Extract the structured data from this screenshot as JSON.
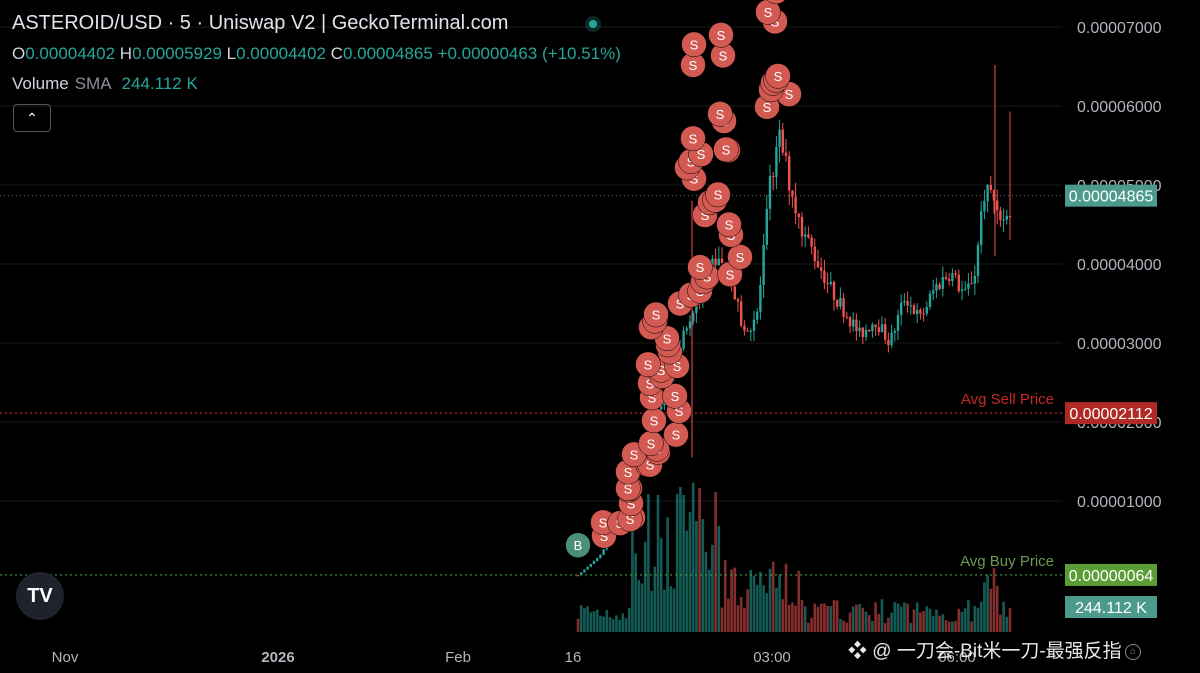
{
  "header": {
    "title": "ASTEROID/USD · 5 · Uniswap V2 | GeckoTerminal.com",
    "ohlc": {
      "o_label": "O",
      "o": "0.00004402",
      "h_label": "H",
      "h": "0.00005929",
      "l_label": "L",
      "l": "0.00004402",
      "c_label": "C",
      "c": "0.00004865",
      "change": "+0.00000463 (+10.51%)"
    },
    "volume": {
      "name": "Volume",
      "sma": "SMA",
      "value": "244.112 K"
    }
  },
  "controls": {
    "collapse_glyph": "⌃",
    "logo_text": "TV"
  },
  "watermark": "❖ @ 一刀会-Bit米一刀-最强反指",
  "chart_data": {
    "type": "candlestick",
    "y_axis": {
      "ticks": [
        1e-05,
        2e-05,
        3e-05,
        4e-05,
        5e-05,
        6e-05,
        7e-05
      ],
      "tick_labels": [
        "0.00001000",
        "0.00002000",
        "0.00003000",
        "0.00004000",
        "0.00005000",
        "0.00006000",
        "0.00007000"
      ],
      "range": [
        0,
        7.35e-05
      ]
    },
    "x_axis": {
      "tick_labels": [
        "Nov",
        "2026",
        "Feb",
        "16",
        "03:00",
        "06:00"
      ]
    },
    "price_lines": [
      {
        "name": "Avg Sell Price",
        "value": "0.00002112",
        "color": "#c62828"
      },
      {
        "name": "Avg Buy Price",
        "value": "0.00000064",
        "color": "#43a047"
      }
    ],
    "current_price": {
      "value": "0.00004865",
      "color": "#26a69a"
    },
    "volume_label": "244.112 K",
    "trade_markers": {
      "buy_label": "B",
      "sell_label": "S",
      "buy_color": "#4c8f79",
      "sell_color": "#d35a52",
      "buys": [
        4.4e-06
      ],
      "sells": [
        5.6e-06,
        7.3e-06,
        7.2e-06,
        7.9e-06,
        7.7e-06,
        9.7e-06,
        1.14e-05,
        1.16e-05,
        1.16e-05,
        1.37e-05,
        1.46e-05,
        1.46e-05,
        1.59e-05,
        1.62e-05,
        1.66e-05,
        1.73e-05,
        1.84e-05,
        2.02e-05,
        2.14e-05,
        2.31e-05,
        2.33e-05,
        2.49e-05,
        2.58e-05,
        2.66e-05,
        2.71e-05,
        2.73e-05,
        2.89e-05,
        2.98e-05,
        3.06e-05,
        3.2e-05,
        3.28e-05,
        3.36e-05,
        3.5e-05,
        3.61e-05,
        3.66e-05,
        3.78e-05,
        3.84e-05,
        3.87e-05,
        3.96e-05,
        4.09e-05,
        4.37e-05,
        4.5e-05,
        4.62e-05,
        4.78e-05,
        4.81e-05,
        4.88e-05,
        5.08e-05,
        5.22e-05,
        5.3e-05,
        5.39e-05,
        5.44e-05,
        5.45e-05,
        5.59e-05,
        5.81e-05,
        5.9e-05,
        5.99e-05,
        6.15e-05,
        6.21e-05,
        6.29e-05,
        6.33e-05,
        6.38e-05,
        6.52e-05,
        6.64e-05,
        6.78e-05,
        6.9e-05,
        7.07e-05,
        7.19e-05,
        7.45e-05
      ]
    }
  }
}
